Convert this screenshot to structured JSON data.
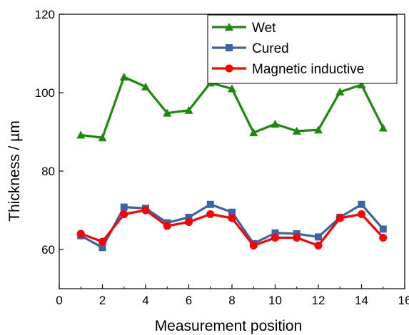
{
  "chart_data": {
    "type": "line",
    "title": "",
    "xlabel": "Measurement position",
    "ylabel": "Thickness / µm",
    "xlim": [
      0,
      16
    ],
    "ylim": [
      50,
      120
    ],
    "xticks": [
      "0",
      "2",
      "4",
      "6",
      "8",
      "10",
      "12",
      "14",
      "16"
    ],
    "yticks": [
      "60",
      "80",
      "100",
      "120"
    ],
    "grid": false,
    "legend_position": "top-right",
    "x": [
      1,
      2,
      3,
      4,
      5,
      6,
      7,
      8,
      9,
      10,
      11,
      12,
      13,
      14,
      15
    ],
    "series": [
      {
        "name": "Wet",
        "color": "#1a8a0a",
        "marker": "triangle",
        "values": [
          89.2,
          88.5,
          104.0,
          101.5,
          94.8,
          95.5,
          102.5,
          101.0,
          89.8,
          92.0,
          90.2,
          90.5,
          100.2,
          102.0,
          91.0
        ]
      },
      {
        "name": "Cured",
        "color": "#3a64a8",
        "marker": "square",
        "values": [
          63.5,
          60.5,
          70.8,
          70.5,
          66.8,
          68.2,
          71.5,
          69.5,
          61.5,
          64.2,
          64.0,
          63.2,
          68.2,
          71.5,
          65.2
        ]
      },
      {
        "name": "Magnetic inductive",
        "color": "#ff0000",
        "marker": "circle",
        "values": [
          64.0,
          62.0,
          69.0,
          70.0,
          66.0,
          67.0,
          69.0,
          68.0,
          61.0,
          63.0,
          63.0,
          61.0,
          68.0,
          69.0,
          63.0
        ]
      }
    ]
  }
}
